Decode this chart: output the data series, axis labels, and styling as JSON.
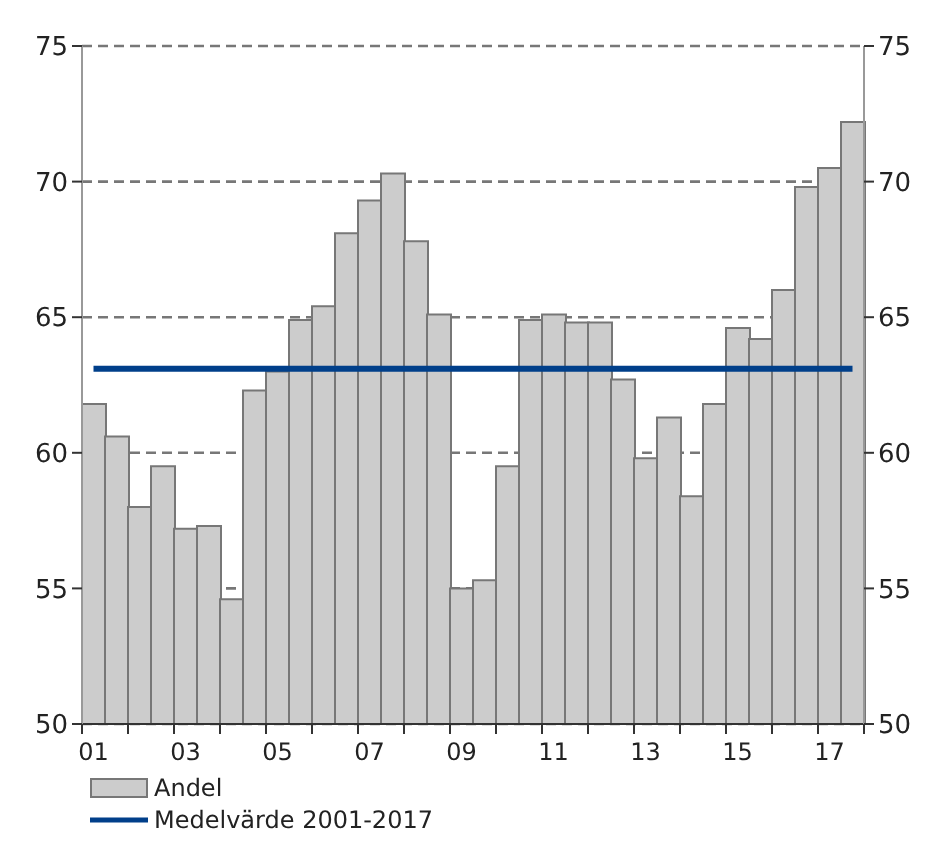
{
  "chart_data": {
    "type": "bar",
    "categories": [
      "01",
      null,
      null,
      null,
      "03",
      null,
      null,
      null,
      "05",
      null,
      null,
      null,
      "07",
      null,
      null,
      null,
      "09",
      null,
      null,
      null,
      "11",
      null,
      null,
      null,
      "13",
      null,
      null,
      null,
      "15",
      null,
      null,
      null,
      "17",
      null
    ],
    "series": [
      {
        "name": "Andel",
        "color": "#cccccc",
        "values": [
          61.8,
          60.6,
          58.0,
          59.5,
          57.2,
          57.3,
          54.6,
          62.3,
          63.0,
          64.9,
          65.4,
          68.1,
          69.3,
          70.3,
          67.8,
          65.1,
          55.0,
          55.3,
          59.5,
          64.9,
          65.1,
          64.8,
          64.8,
          62.7,
          59.8,
          61.3,
          58.4,
          61.8,
          64.6,
          64.2,
          66.0,
          69.8,
          70.5,
          72.2
        ]
      },
      {
        "name": "Medelvärde 2001-2017",
        "type": "line",
        "color": "#003f8a",
        "values": [
          63.1,
          63.1,
          63.1,
          63.1,
          63.1,
          63.1,
          63.1,
          63.1,
          63.1,
          63.1,
          63.1,
          63.1,
          63.1,
          63.1,
          63.1,
          63.1,
          63.1,
          63.1,
          63.1,
          63.1,
          63.1,
          63.1,
          63.1,
          63.1,
          63.1,
          63.1,
          63.1,
          63.1,
          63.1,
          63.1,
          63.1,
          63.1,
          63.1,
          63.1
        ]
      }
    ],
    "ylim": [
      50,
      75
    ],
    "yticks": [
      50,
      55,
      60,
      65,
      70,
      75
    ],
    "y2lim": [
      50,
      75
    ],
    "y2ticks": [
      50,
      55,
      60,
      65,
      70,
      75
    ],
    "grid": "y",
    "legend": "bottom",
    "marker": "none",
    "line_style": "solid"
  }
}
